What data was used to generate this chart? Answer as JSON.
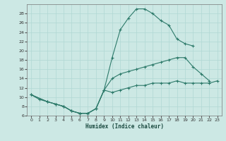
{
  "xlabel": "Humidex (Indice chaleur)",
  "background_color": "#cce8e4",
  "grid_color": "#b0d8d4",
  "line_color": "#2d7a6a",
  "xlim": [
    -0.5,
    23.5
  ],
  "ylim": [
    6,
    30
  ],
  "xticks": [
    0,
    1,
    2,
    3,
    4,
    5,
    6,
    7,
    8,
    9,
    10,
    11,
    12,
    13,
    14,
    15,
    16,
    17,
    18,
    19,
    20,
    21,
    22,
    23
  ],
  "yticks": [
    6,
    8,
    10,
    12,
    14,
    16,
    18,
    20,
    22,
    24,
    26,
    28
  ],
  "curve1_x": [
    0,
    1,
    2,
    3,
    4,
    5,
    6,
    7,
    8,
    9,
    10,
    11,
    12,
    13,
    14,
    15,
    16,
    17,
    18,
    19,
    20
  ],
  "curve1_y": [
    10.5,
    9.5,
    9.0,
    8.5,
    8.0,
    7.0,
    6.5,
    6.5,
    7.5,
    11.5,
    18.5,
    24.5,
    27.0,
    29.0,
    29.0,
    28.0,
    26.5,
    25.5,
    22.5,
    21.5,
    21.0
  ],
  "curve2_x": [
    0,
    2,
    3,
    4,
    5,
    6,
    7,
    8,
    9,
    10,
    11,
    12,
    13,
    14,
    15,
    16,
    17,
    18,
    19,
    20,
    21,
    22
  ],
  "curve2_y": [
    10.5,
    9.0,
    8.5,
    8.0,
    7.0,
    6.5,
    6.5,
    7.5,
    11.5,
    14.0,
    15.0,
    15.5,
    16.0,
    16.5,
    17.0,
    17.5,
    18.0,
    18.5,
    18.5,
    16.5,
    15.0,
    13.5
  ],
  "curve3_x": [
    0,
    2,
    3,
    4,
    5,
    6,
    7,
    8,
    9,
    10,
    11,
    12,
    13,
    14,
    15,
    16,
    17,
    18,
    19,
    20,
    21,
    22,
    23
  ],
  "curve3_y": [
    10.5,
    9.0,
    8.5,
    8.0,
    7.0,
    6.5,
    6.5,
    7.5,
    11.5,
    11.0,
    11.5,
    12.0,
    12.5,
    12.5,
    13.0,
    13.0,
    13.0,
    13.5,
    13.0,
    13.0,
    13.0,
    13.0,
    13.5
  ]
}
